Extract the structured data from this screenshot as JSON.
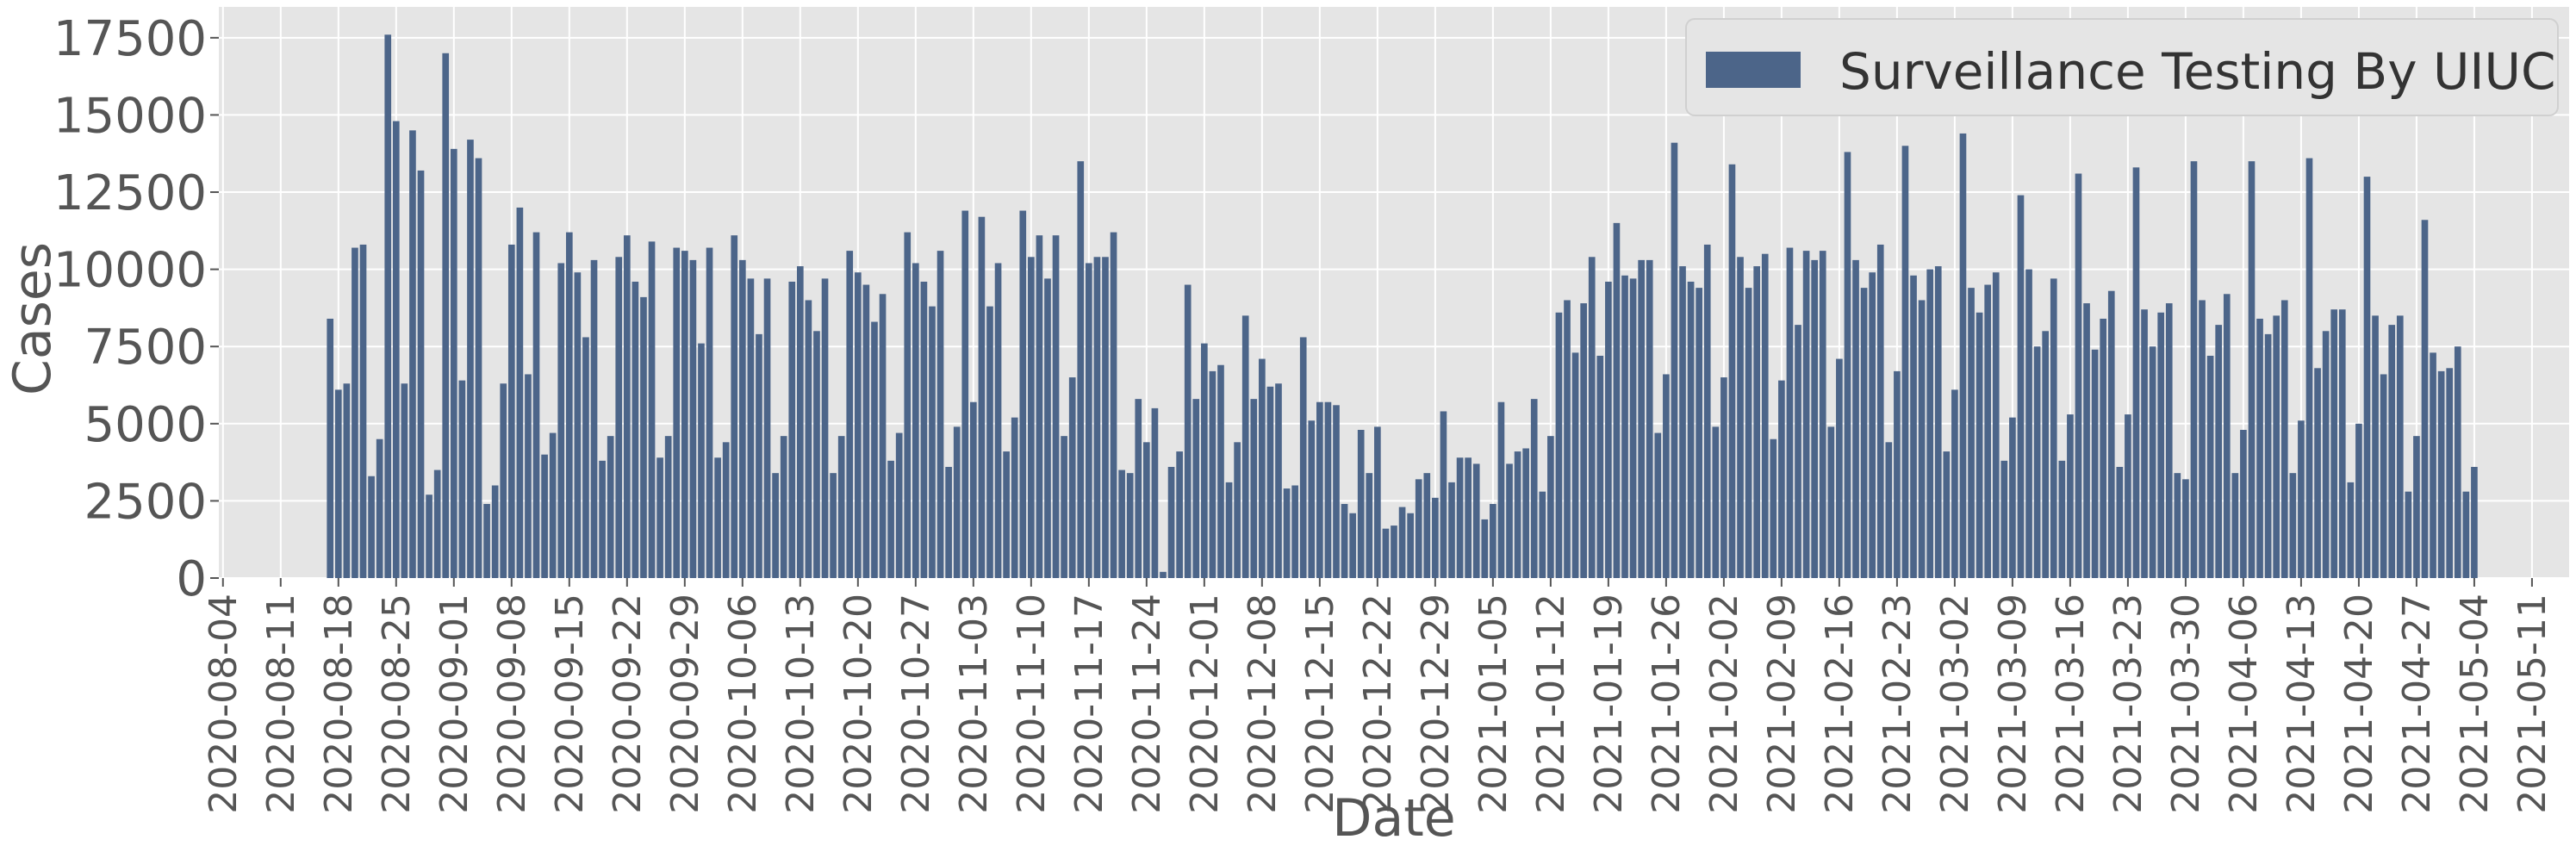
{
  "chart_data": {
    "type": "bar",
    "xlabel": "Date",
    "ylabel": "Cases",
    "ylim": [
      0,
      18500
    ],
    "xlim": [
      "2020-08-04",
      "2021-05-15"
    ],
    "grid": true,
    "legend_position": "top-right",
    "y_ticks": [
      0,
      2500,
      5000,
      7500,
      10000,
      12500,
      15000,
      17500
    ],
    "y_tick_labels": [
      "0",
      "2500",
      "5000",
      "7500",
      "10000",
      "12500",
      "15000",
      "17500"
    ],
    "x_tick_labels": [
      "2020-08-04",
      "2020-08-11",
      "2020-08-18",
      "2020-08-25",
      "2020-09-01",
      "2020-09-08",
      "2020-09-15",
      "2020-09-22",
      "2020-09-29",
      "2020-10-06",
      "2020-10-13",
      "2020-10-20",
      "2020-10-27",
      "2020-11-03",
      "2020-11-10",
      "2020-11-17",
      "2020-11-24",
      "2020-12-01",
      "2020-12-08",
      "2020-12-15",
      "2020-12-22",
      "2020-12-29",
      "2021-01-05",
      "2021-01-12",
      "2021-01-19",
      "2021-01-26",
      "2021-02-02",
      "2021-02-09",
      "2021-02-16",
      "2021-02-23",
      "2021-03-02",
      "2021-03-09",
      "2021-03-16",
      "2021-03-23",
      "2021-03-30",
      "2021-04-06",
      "2021-04-13",
      "2021-04-20",
      "2021-04-27",
      "2021-05-04",
      "2021-05-11"
    ],
    "series": [
      {
        "name": "Surveillance Testing By UIUC",
        "color": "#4c6589",
        "start_date": "2020-08-17",
        "values": [
          8400,
          6100,
          6300,
          10700,
          10800,
          3300,
          4500,
          17600,
          14800,
          6300,
          14500,
          13200,
          2700,
          3500,
          17000,
          13900,
          6400,
          14200,
          13600,
          2400,
          3000,
          6300,
          10800,
          12000,
          6600,
          11200,
          4000,
          4700,
          10200,
          11200,
          9900,
          7800,
          10300,
          3800,
          4600,
          10400,
          11100,
          9600,
          9100,
          10900,
          3900,
          4600,
          10700,
          10600,
          10300,
          7600,
          10700,
          3900,
          4400,
          11100,
          10300,
          9700,
          7900,
          9700,
          3400,
          4600,
          9600,
          10100,
          9000,
          8000,
          9700,
          3400,
          4600,
          10600,
          9900,
          9500,
          8300,
          9200,
          3800,
          4700,
          11200,
          10200,
          9600,
          8800,
          10600,
          3600,
          4900,
          11900,
          5700,
          11700,
          8800,
          10200,
          4100,
          5200,
          11900,
          10400,
          11100,
          9700,
          11100,
          4600,
          6500,
          13500,
          10200,
          10400,
          10400,
          11200,
          3500,
          3400,
          5800,
          4400,
          5500,
          200,
          3600,
          4100,
          9500,
          5800,
          7600,
          6700,
          6900,
          3100,
          4400,
          8500,
          5800,
          7100,
          6200,
          6300,
          2900,
          3000,
          7800,
          5100,
          5700,
          5700,
          5600,
          2400,
          2100,
          4800,
          3400,
          4900,
          1600,
          1700,
          2300,
          2100,
          3200,
          3400,
          2600,
          5400,
          3100,
          3900,
          3900,
          3700,
          1900,
          2400,
          5700,
          3700,
          4100,
          4200,
          5800,
          2800,
          4600,
          8600,
          9000,
          7300,
          8900,
          10400,
          7200,
          9600,
          11500,
          9800,
          9700,
          10300,
          10300,
          4700,
          6600,
          14100,
          10100,
          9600,
          9400,
          10800,
          4900,
          6500,
          13400,
          10400,
          9400,
          10100,
          10500,
          4500,
          6400,
          10700,
          8200,
          10600,
          10300,
          10600,
          4900,
          7100,
          13800,
          10300,
          9400,
          9900,
          10800,
          4400,
          6700,
          14000,
          9800,
          9000,
          10000,
          10100,
          4100,
          6100,
          14400,
          9400,
          8600,
          9500,
          9900,
          3800,
          5200,
          12400,
          10000,
          7500,
          8000,
          9700,
          3800,
          5300,
          13100,
          8900,
          7400,
          8400,
          9300,
          3600,
          5300,
          13300,
          8700,
          7500,
          8600,
          8900,
          3400,
          3200,
          13500,
          9000,
          7200,
          8200,
          9200,
          3400,
          4800,
          13500,
          8400,
          7900,
          8500,
          9000,
          3400,
          5100,
          13600,
          6800,
          8000,
          8700,
          8700,
          3100,
          5000,
          13000,
          8500,
          6600,
          8200,
          8500,
          2800,
          4600,
          11600,
          7300,
          6700,
          6800,
          7500,
          2800,
          3600
        ]
      }
    ]
  }
}
